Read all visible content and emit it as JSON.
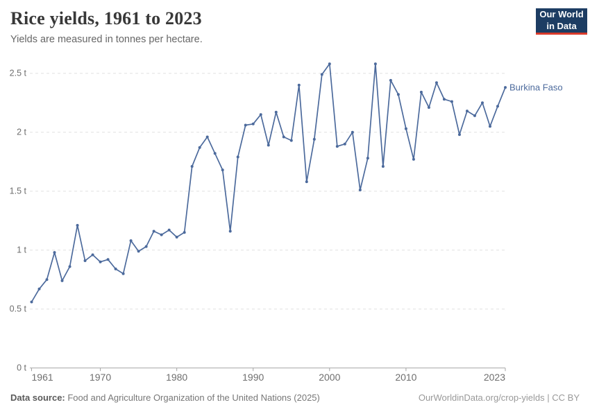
{
  "header": {
    "title": "Rice yields, 1961 to 2023",
    "subtitle": "Yields are measured in tonnes per hectare."
  },
  "logo": {
    "line1": "Our World",
    "line2": "in Data",
    "bg_color": "#1d3d63",
    "bar_color": "#d93a2b"
  },
  "chart_data": {
    "type": "line",
    "title": "Rice yields, 1961 to 2023",
    "subtitle": "Yields are measured in tonnes per hectare.",
    "xlabel": "",
    "ylabel": "tonnes per hectare",
    "ylim": [
      0,
      2.5
    ],
    "ytick_values": [
      0,
      0.5,
      1,
      1.5,
      2,
      2.5
    ],
    "ytick_labels": [
      "0 t",
      "0.5 t",
      "1 t",
      "1.5 t",
      "2 t",
      "2.5 t"
    ],
    "xticks": [
      1961,
      1970,
      1980,
      1990,
      2000,
      2010,
      2023
    ],
    "grid": "horizontal-dashed",
    "legend_position": "line-end-label",
    "series": [
      {
        "name": "Burkina Faso",
        "color": "#4C6A9C",
        "x": [
          1961,
          1962,
          1963,
          1964,
          1965,
          1966,
          1967,
          1968,
          1969,
          1970,
          1971,
          1972,
          1973,
          1974,
          1975,
          1976,
          1977,
          1978,
          1979,
          1980,
          1981,
          1982,
          1983,
          1984,
          1985,
          1986,
          1987,
          1988,
          1989,
          1990,
          1991,
          1992,
          1993,
          1994,
          1995,
          1996,
          1997,
          1998,
          1999,
          2000,
          2001,
          2002,
          2003,
          2004,
          2005,
          2006,
          2007,
          2008,
          2009,
          2010,
          2011,
          2012,
          2013,
          2014,
          2015,
          2016,
          2017,
          2018,
          2019,
          2020,
          2021,
          2022,
          2023
        ],
        "values": [
          0.56,
          0.67,
          0.75,
          0.98,
          0.74,
          0.86,
          1.21,
          0.91,
          0.96,
          0.9,
          0.92,
          0.84,
          0.8,
          1.08,
          0.99,
          1.03,
          1.16,
          1.13,
          1.17,
          1.11,
          1.15,
          1.71,
          1.87,
          1.96,
          1.82,
          1.68,
          1.16,
          1.79,
          2.06,
          2.07,
          2.15,
          1.89,
          2.17,
          1.96,
          1.93,
          2.4,
          1.58,
          1.94,
          2.49,
          2.58,
          1.88,
          1.9,
          2.0,
          1.51,
          1.78,
          2.58,
          1.71,
          2.44,
          2.32,
          2.03,
          1.77,
          2.34,
          2.21,
          2.42,
          2.28,
          2.26,
          1.98,
          2.18,
          2.14,
          2.25,
          2.05,
          2.22,
          2.38
        ]
      }
    ]
  },
  "footer": {
    "data_source_label": "Data source:",
    "data_source_text": " Food and Agriculture Organization of the United Nations (2025)",
    "credit": "OurWorldinData.org/crop-yields | CC BY"
  },
  "colors": {
    "grid": "#e0e0e0",
    "axis": "#a3a3a3",
    "tick_label": "#6e6e6e",
    "title": "#383838",
    "subtitle": "#666666"
  }
}
